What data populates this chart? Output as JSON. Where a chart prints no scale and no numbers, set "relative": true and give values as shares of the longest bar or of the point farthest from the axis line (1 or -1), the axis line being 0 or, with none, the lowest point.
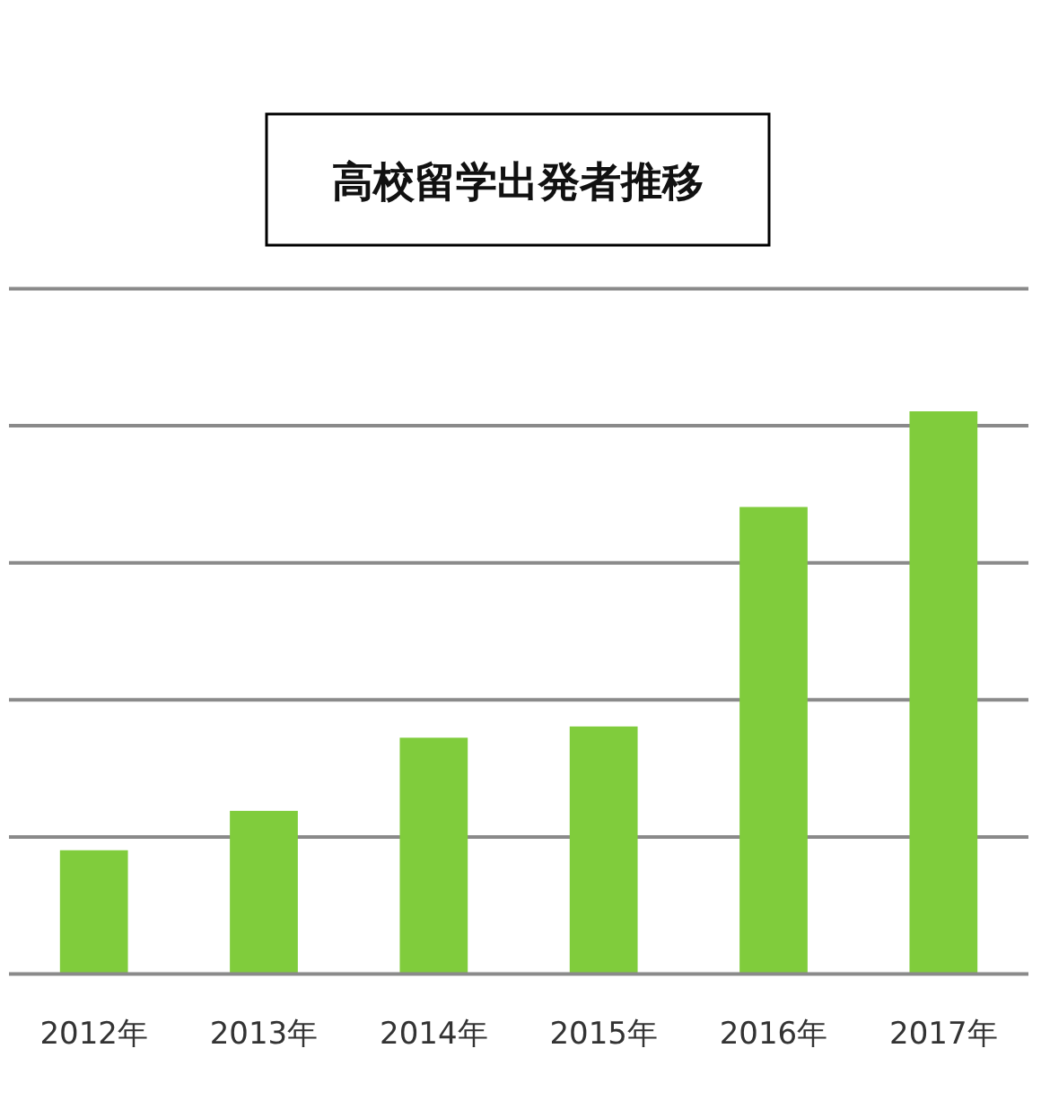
{
  "chart_data": {
    "type": "bar",
    "title": "高校留学出発者推移",
    "categories": [
      "2012年",
      "2013年",
      "2014年",
      "2015年",
      "2016年",
      "2017年"
    ],
    "values": [
      0.22,
      0.29,
      0.42,
      0.44,
      0.83,
      1
    ],
    "color": "#80cc3c",
    "relative": true,
    "grid": "y"
  }
}
